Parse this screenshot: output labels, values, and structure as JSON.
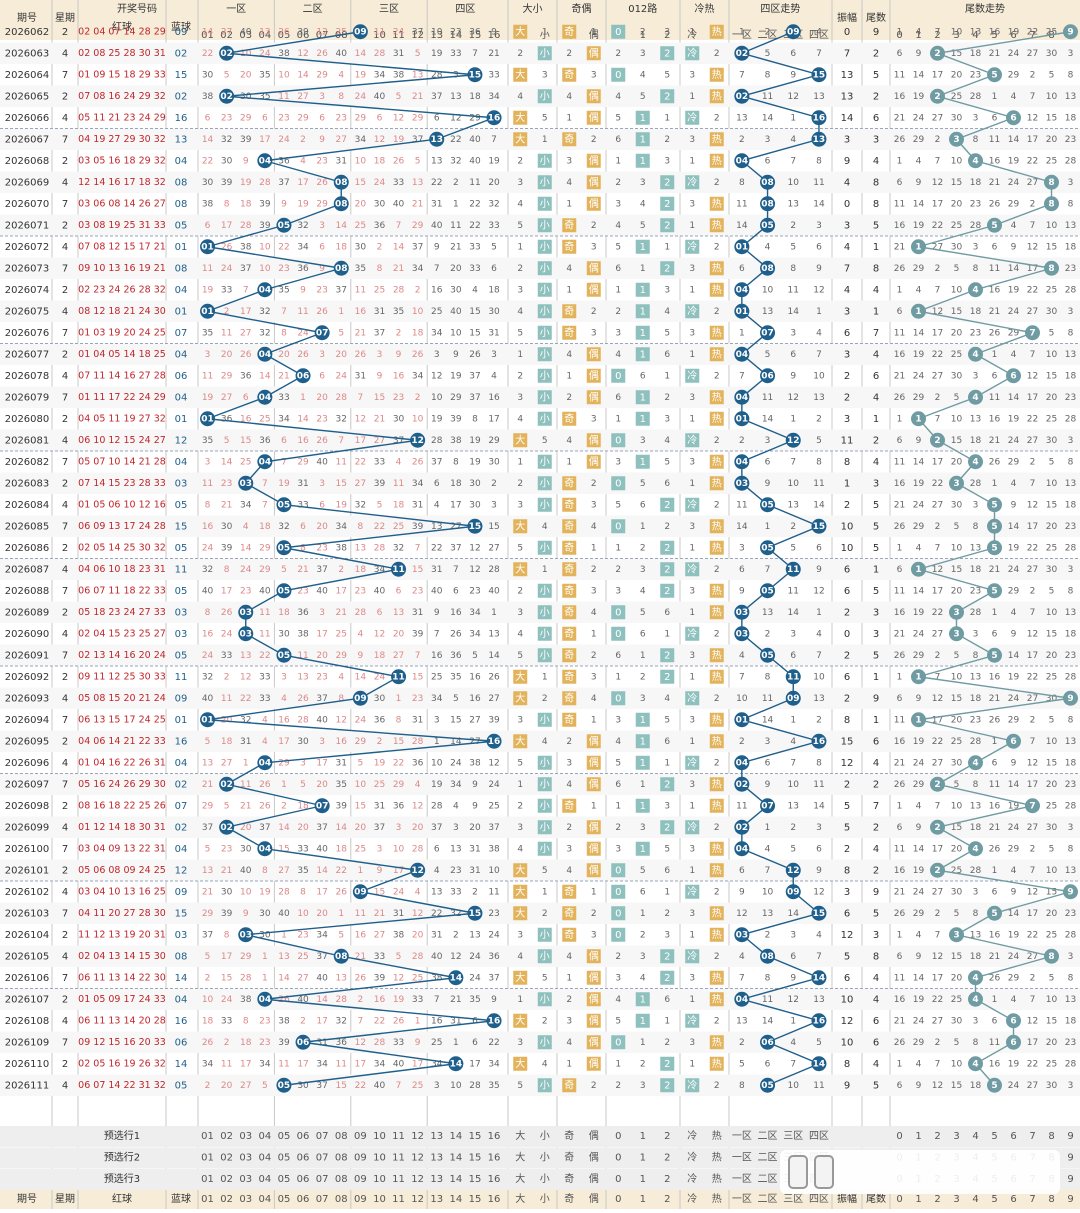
{
  "header": {
    "top": [
      "期号",
      "星期",
      "开奖号码",
      "一区",
      "二区",
      "三区",
      "四区",
      "大小",
      "奇偶",
      "012路",
      "冷热",
      "四区走势",
      "振幅",
      "尾数",
      "尾数走势"
    ],
    "sub_red": "红球",
    "sub_blue": "蓝球",
    "zone1": [
      "01",
      "02",
      "03",
      "04"
    ],
    "zone2": [
      "05",
      "06",
      "07",
      "08"
    ],
    "zone3": [
      "09",
      "10",
      "11",
      "12"
    ],
    "zone4": [
      "13",
      "14",
      "15",
      "16"
    ],
    "daxiao": [
      "大",
      "小"
    ],
    "jiou": [
      "奇",
      "偶"
    ],
    "lu": [
      "0",
      "1",
      "2"
    ],
    "lengre": [
      "冷",
      "热"
    ],
    "zones": [
      "一区",
      "二区",
      "三区",
      "四区"
    ],
    "tails": [
      "0",
      "1",
      "2",
      "3",
      "4",
      "5",
      "6",
      "7",
      "8",
      "9"
    ]
  },
  "draws": [
    {
      "issue": "2026062",
      "week": "2",
      "red": "02 04 07 14 28 29",
      "blue": "09"
    },
    {
      "issue": "2026063",
      "week": "4",
      "red": "02 08 25 28 30 31",
      "blue": "02"
    },
    {
      "issue": "2026064",
      "week": "7",
      "red": "01 09 15 18 29 33",
      "blue": "15"
    },
    {
      "issue": "2026065",
      "week": "2",
      "red": "07 08 16 24 29 32",
      "blue": "02"
    },
    {
      "issue": "2026066",
      "week": "4",
      "red": "05 11 21 23 24 29",
      "blue": "16"
    },
    {
      "issue": "2026067",
      "week": "7",
      "red": "04 19 27 29 30 32",
      "blue": "13"
    },
    {
      "issue": "2026068",
      "week": "2",
      "red": "03 05 16 18 29 32",
      "blue": "04"
    },
    {
      "issue": "2026069",
      "week": "4",
      "red": "12 14 16 17 18 32",
      "blue": "08"
    },
    {
      "issue": "2026070",
      "week": "7",
      "red": "03 06 08 14 26 27",
      "blue": "08"
    },
    {
      "issue": "2026071",
      "week": "2",
      "red": "03 08 19 25 31 33",
      "blue": "05"
    },
    {
      "issue": "2026072",
      "week": "4",
      "red": "07 08 12 15 17 21",
      "blue": "01"
    },
    {
      "issue": "2026073",
      "week": "7",
      "red": "09 10 13 16 19 21",
      "blue": "08"
    },
    {
      "issue": "2026074",
      "week": "2",
      "red": "02 23 24 26 28 32",
      "blue": "04"
    },
    {
      "issue": "2026075",
      "week": "4",
      "red": "08 12 18 21 24 30",
      "blue": "01"
    },
    {
      "issue": "2026076",
      "week": "7",
      "red": "01 03 19 20 24 25",
      "blue": "07"
    },
    {
      "issue": "2026077",
      "week": "2",
      "red": "01 04 05 14 18 25",
      "blue": "04"
    },
    {
      "issue": "2026078",
      "week": "4",
      "red": "07 11 14 16 27 28",
      "blue": "06"
    },
    {
      "issue": "2026079",
      "week": "7",
      "red": "01 11 17 22 24 29",
      "blue": "04"
    },
    {
      "issue": "2026080",
      "week": "2",
      "red": "04 05 11 19 27 32",
      "blue": "01"
    },
    {
      "issue": "2026081",
      "week": "4",
      "red": "06 10 12 15 24 27",
      "blue": "12"
    },
    {
      "issue": "2026082",
      "week": "7",
      "red": "05 07 10 14 21 28",
      "blue": "04"
    },
    {
      "issue": "2026083",
      "week": "2",
      "red": "07 14 15 23 28 33",
      "blue": "03"
    },
    {
      "issue": "2026084",
      "week": "4",
      "red": "01 05 06 10 12 16",
      "blue": "05"
    },
    {
      "issue": "2026085",
      "week": "7",
      "red": "06 09 13 17 24 28",
      "blue": "15"
    },
    {
      "issue": "2026086",
      "week": "2",
      "red": "02 05 14 25 30 32",
      "blue": "05"
    },
    {
      "issue": "2026087",
      "week": "4",
      "red": "04 06 10 18 23 31",
      "blue": "11"
    },
    {
      "issue": "2026088",
      "week": "7",
      "red": "06 07 11 18 22 33",
      "blue": "05"
    },
    {
      "issue": "2026089",
      "week": "2",
      "red": "05 18 23 24 27 33",
      "blue": "03"
    },
    {
      "issue": "2026090",
      "week": "4",
      "red": "02 04 15 23 25 27",
      "blue": "03"
    },
    {
      "issue": "2026091",
      "week": "7",
      "red": "02 13 14 16 20 24",
      "blue": "05"
    },
    {
      "issue": "2026092",
      "week": "2",
      "red": "09 11 12 25 30 33",
      "blue": "11"
    },
    {
      "issue": "2026093",
      "week": "4",
      "red": "05 08 15 20 21 24",
      "blue": "09"
    },
    {
      "issue": "2026094",
      "week": "7",
      "red": "06 13 15 17 24 25",
      "blue": "01"
    },
    {
      "issue": "2026095",
      "week": "2",
      "red": "04 06 14 21 22 33",
      "blue": "16"
    },
    {
      "issue": "2026096",
      "week": "4",
      "red": "01 04 16 22 26 31",
      "blue": "04"
    },
    {
      "issue": "2026097",
      "week": "7",
      "red": "05 16 24 26 29 30",
      "blue": "02"
    },
    {
      "issue": "2026098",
      "week": "2",
      "red": "08 16 18 22 25 26",
      "blue": "07"
    },
    {
      "issue": "2026099",
      "week": "4",
      "red": "01 12 14 18 30 31",
      "blue": "02"
    },
    {
      "issue": "2026100",
      "week": "7",
      "red": "03 04 09 13 22 31",
      "blue": "04"
    },
    {
      "issue": "2026101",
      "week": "2",
      "red": "05 06 08 09 24 25",
      "blue": "12"
    },
    {
      "issue": "2026102",
      "week": "4",
      "red": "03 04 10 13 16 25",
      "blue": "09"
    },
    {
      "issue": "2026103",
      "week": "7",
      "red": "04 11 20 27 28 30",
      "blue": "15"
    },
    {
      "issue": "2026104",
      "week": "2",
      "red": "11 12 13 19 20 31",
      "blue": "03"
    },
    {
      "issue": "2026105",
      "week": "4",
      "red": "02 04 13 14 15 30",
      "blue": "08"
    },
    {
      "issue": "2026106",
      "week": "7",
      "red": "06 11 13 14 22 30",
      "blue": "14"
    },
    {
      "issue": "2026107",
      "week": "2",
      "red": "01 05 09 17 24 33",
      "blue": "04"
    },
    {
      "issue": "2026108",
      "week": "4",
      "red": "06 11 13 14 20 28",
      "blue": "16"
    },
    {
      "issue": "2026109",
      "week": "7",
      "red": "09 12 15 16 20 33",
      "blue": "06"
    },
    {
      "issue": "2026110",
      "week": "2",
      "red": "02 05 16 19 26 32",
      "blue": "14"
    },
    {
      "issue": "2026111",
      "week": "4",
      "red": "06 07 14 22 31 32",
      "blue": "05"
    }
  ],
  "preselect": [
    "预选行1",
    "预选行2",
    "预选行3"
  ],
  "colors": {
    "header_bg": "#f6ecd8",
    "sep": "#9aa6b8",
    "ball": "#1f5f8b",
    "tail_ball": "#6f9ba3",
    "big": "#e2b35a",
    "small": "#8ec0be",
    "cold": "#e3b45f",
    "hot": "#e2b35a",
    "miss_red": "#d88",
    "miss_gray": "#666",
    "red_text": "#c0262a",
    "blue_text": "#1f5f8b"
  }
}
